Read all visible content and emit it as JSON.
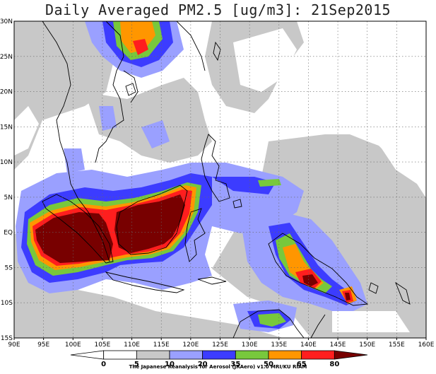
{
  "title": "Daily Averaged PM2.5 [ug/m3]: 21Sep2015",
  "credit": "The Japanese Reanalysis for Aerosol (JRAero) v1.0 MRI/KU RIAM",
  "map": {
    "lon_range": [
      90,
      160
    ],
    "lat_range": [
      -15,
      30
    ],
    "lon_ticks": [
      "90E",
      "95E",
      "100E",
      "105E",
      "110E",
      "115E",
      "120E",
      "125E",
      "130E",
      "135E",
      "140E",
      "145E",
      "150E",
      "155E",
      "160E"
    ],
    "lat_ticks": [
      "30N",
      "25N",
      "20N",
      "15N",
      "10N",
      "5N",
      "EQ",
      "5S",
      "10S",
      "15S"
    ],
    "grid": true
  },
  "colorbar": {
    "levels": [
      "0",
      "5",
      "10",
      "20",
      "35",
      "50",
      "65",
      "80"
    ],
    "colors": [
      "#ffffff",
      "#ffffff",
      "#c8c8c8",
      "#9aa0ff",
      "#3c3cff",
      "#78c83c",
      "#ff9600",
      "#ff1e1e",
      "#780000"
    ]
  }
}
